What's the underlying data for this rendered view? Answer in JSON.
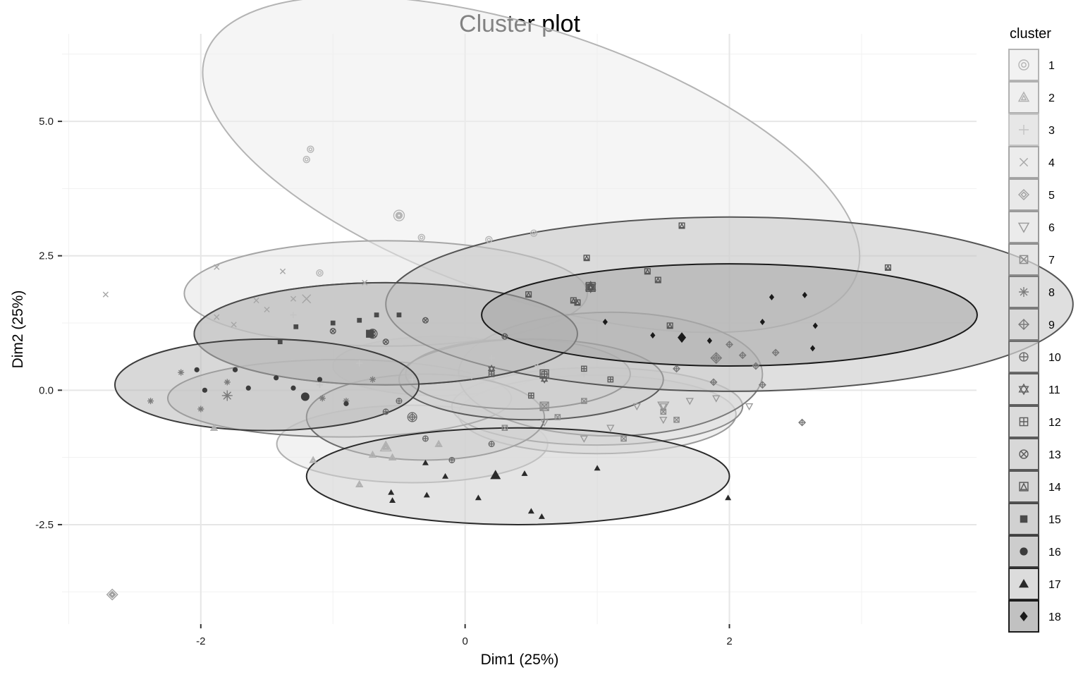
{
  "chart_data": {
    "type": "scatter",
    "title": "Cluster plot",
    "xlabel": "Dim1 (25%)",
    "ylabel": "Dim2 (25%)",
    "xlim": [
      -3.05,
      3.87
    ],
    "ylim": [
      -4.35,
      6.47
    ],
    "x_ticks": [
      -2,
      0,
      2
    ],
    "x_tick_labels": [
      "-2",
      "0",
      "2"
    ],
    "y_ticks": [
      -2.5,
      0,
      2.5,
      5
    ],
    "y_tick_labels": [
      "-2.5",
      "0.0",
      "2.5",
      "5.0"
    ],
    "grid": true,
    "legend": {
      "title": "cluster",
      "placement": "right",
      "entries": [
        {
          "label": "1",
          "shape": "circle-open-dot"
        },
        {
          "label": "2",
          "shape": "triangle-open-inner"
        },
        {
          "label": "3",
          "shape": "plus"
        },
        {
          "label": "4",
          "shape": "cross"
        },
        {
          "label": "5",
          "shape": "diamond-open-inner"
        },
        {
          "label": "6",
          "shape": "triangle-down-open"
        },
        {
          "label": "7",
          "shape": "square-crossed"
        },
        {
          "label": "8",
          "shape": "asterisk"
        },
        {
          "label": "9",
          "shape": "diamond-plus"
        },
        {
          "label": "10",
          "shape": "circle-plus"
        },
        {
          "label": "11",
          "shape": "star-of-david"
        },
        {
          "label": "12",
          "shape": "square-plus"
        },
        {
          "label": "13",
          "shape": "circle-crossed"
        },
        {
          "label": "14",
          "shape": "square-triangle"
        },
        {
          "label": "15",
          "shape": "square-filled"
        },
        {
          "label": "16",
          "shape": "circle-filled"
        },
        {
          "label": "17",
          "shape": "triangle-filled"
        },
        {
          "label": "18",
          "shape": "diamond-filled"
        }
      ]
    },
    "series": [
      {
        "cluster": "1",
        "color": "#b4b4b4",
        "fill": "#ededed",
        "ellipse": {
          "cx": 0.5,
          "cy": 4.2,
          "rx": 5.2,
          "ry": 2.5,
          "angle": -18.6
        },
        "center": [
          -0.5,
          3.25
        ],
        "points": [
          [
            -1.17,
            4.48
          ],
          [
            -1.2,
            4.29
          ],
          [
            -0.33,
            2.84
          ],
          [
            0.18,
            2.8
          ],
          [
            0.52,
            2.92
          ],
          [
            -1.1,
            2.18
          ],
          [
            -0.5,
            3.25
          ]
        ]
      },
      {
        "cluster": "2",
        "color": "#b0b0b0",
        "fill": "#e8e8e8",
        "ellipse": {
          "cx": -0.4,
          "cy": -1.0,
          "rx": 2.05,
          "ry": 0.72,
          "angle": 0
        },
        "center": [
          -0.6,
          -1.05
        ],
        "points": [
          [
            -1.9,
            -0.7
          ],
          [
            -1.15,
            -1.3
          ],
          [
            -0.7,
            -1.2
          ],
          [
            -0.55,
            -1.25
          ],
          [
            -0.8,
            -1.75
          ],
          [
            -0.2,
            -1.0
          ],
          [
            -0.6,
            -1.05
          ]
        ]
      },
      {
        "cluster": "3",
        "color": "#c4c4c4",
        "fill": "#dddddd",
        "ellipse": {
          "cx": -0.2,
          "cy": 0.45,
          "rx": 1.6,
          "ry": 0.55,
          "angle": 0
        },
        "center": [
          0.05,
          0.3
        ],
        "points": [
          [
            -1.3,
            1.4
          ],
          [
            -0.8,
            0.5
          ],
          [
            -0.4,
            0.2
          ],
          [
            0.2,
            0.6
          ],
          [
            0.55,
            0.45
          ],
          [
            0.9,
            0.3
          ],
          [
            -1.1,
            0.1
          ],
          [
            0.05,
            0.3
          ]
        ]
      },
      {
        "cluster": "4",
        "color": "#a6a6a6",
        "fill": "#e4e4e4",
        "ellipse": {
          "cx": -0.6,
          "cy": 1.8,
          "rx": 3.05,
          "ry": 0.98,
          "angle": 0
        },
        "center": [
          -1.2,
          1.7
        ],
        "points": [
          [
            -2.72,
            1.78
          ],
          [
            -1.88,
            2.29
          ],
          [
            -1.38,
            2.21
          ],
          [
            -0.76,
            2.0
          ],
          [
            -1.3,
            1.7
          ],
          [
            -1.58,
            1.67
          ],
          [
            -1.88,
            1.36
          ],
          [
            -1.75,
            1.22
          ],
          [
            -1.5,
            1.5
          ],
          [
            -1.2,
            1.7
          ]
        ]
      },
      {
        "cluster": "5",
        "color": "#a0a0a0",
        "fill": "#e0e0e0",
        "ellipse": {
          "cx": -2.67,
          "cy": -3.8,
          "rx": 0.0,
          "ry": 0.0,
          "angle": 0
        },
        "center": [
          -2.67,
          -3.8
        ],
        "points": [
          [
            -2.67,
            -3.8
          ]
        ]
      },
      {
        "cluster": "6",
        "color": "#9a9a9a",
        "fill": "#e2e2e2",
        "ellipse": {
          "cx": 1.0,
          "cy": -0.45,
          "rx": 2.1,
          "ry": 0.73,
          "angle": 0
        },
        "center": [
          1.5,
          -0.3
        ],
        "points": [
          [
            1.1,
            -0.7
          ],
          [
            1.3,
            -0.3
          ],
          [
            1.5,
            -0.55
          ],
          [
            1.7,
            -0.2
          ],
          [
            1.9,
            -0.15
          ],
          [
            2.15,
            -0.3
          ],
          [
            0.9,
            -0.9
          ],
          [
            0.6,
            -0.6
          ],
          [
            1.5,
            -0.3
          ]
        ]
      },
      {
        "cluster": "7",
        "color": "#8c8c8c",
        "fill": "#dcdcdc",
        "ellipse": {
          "cx": 1.0,
          "cy": -0.3,
          "rx": 2.2,
          "ry": 0.72,
          "angle": 0
        },
        "center": [
          0.6,
          -0.3
        ],
        "points": [
          [
            0.7,
            -0.5
          ],
          [
            1.2,
            -0.9
          ],
          [
            1.5,
            -0.4
          ],
          [
            1.6,
            -0.55
          ],
          [
            0.3,
            -0.7
          ],
          [
            0.9,
            -0.2
          ],
          [
            0.6,
            -0.3
          ]
        ]
      },
      {
        "cluster": "8",
        "color": "#7c7c7c",
        "fill": "#dadada",
        "ellipse": {
          "cx": -0.95,
          "cy": -0.15,
          "rx": 2.6,
          "ry": 0.72,
          "angle": 0
        },
        "center": [
          -1.8,
          -0.1
        ],
        "points": [
          [
            -2.38,
            -0.2
          ],
          [
            -2.0,
            -0.35
          ],
          [
            -2.15,
            0.33
          ],
          [
            -1.8,
            0.15
          ],
          [
            -1.08,
            -0.15
          ],
          [
            -0.7,
            0.2
          ],
          [
            -0.9,
            -0.2
          ],
          [
            -1.8,
            -0.1
          ]
        ]
      },
      {
        "cluster": "9",
        "color": "#7a7a7a",
        "fill": "#d6d6d6",
        "ellipse": {
          "cx": 1.1,
          "cy": 0.3,
          "rx": 2.3,
          "ry": 1.15,
          "angle": 0
        },
        "center": [
          1.9,
          0.6
        ],
        "points": [
          [
            1.88,
            0.15
          ],
          [
            2.1,
            0.65
          ],
          [
            2.2,
            0.45
          ],
          [
            2.35,
            0.7
          ],
          [
            2.25,
            0.1
          ],
          [
            2.55,
            -0.6
          ],
          [
            1.6,
            0.4
          ],
          [
            2.0,
            0.85
          ],
          [
            1.9,
            0.6
          ]
        ]
      },
      {
        "cluster": "10",
        "color": "#6c6c6c",
        "fill": "#d2d2d2",
        "ellipse": {
          "cx": -0.3,
          "cy": -0.5,
          "rx": 1.8,
          "ry": 0.8,
          "angle": 0
        },
        "center": [
          -0.4,
          -0.5
        ],
        "points": [
          [
            -0.3,
            -0.9
          ],
          [
            -0.1,
            -1.3
          ],
          [
            0.2,
            -1.0
          ],
          [
            -0.6,
            -0.4
          ],
          [
            -0.5,
            -0.2
          ],
          [
            -0.4,
            -0.5
          ]
        ]
      },
      {
        "cluster": "11",
        "color": "#606060",
        "fill": "#d0d0d0",
        "ellipse": {
          "cx": 0.4,
          "cy": 0.3,
          "rx": 1.7,
          "ry": 0.65,
          "angle": 0
        },
        "center": [
          0.95,
          1.92
        ],
        "points": [
          [
            0.95,
            1.92
          ],
          [
            0.2,
            0.4
          ],
          [
            0.6,
            0.2
          ]
        ]
      },
      {
        "cluster": "12",
        "color": "#5c5c5c",
        "fill": "#cccccc",
        "ellipse": {
          "cx": 0.5,
          "cy": 0.2,
          "rx": 2.0,
          "ry": 0.75,
          "angle": 0
        },
        "center": [
          0.6,
          0.3
        ],
        "points": [
          [
            0.2,
            0.3
          ],
          [
            0.5,
            -0.1
          ],
          [
            0.9,
            0.4
          ],
          [
            1.1,
            0.2
          ],
          [
            0.6,
            0.3
          ]
        ]
      },
      {
        "cluster": "13",
        "color": "#5a5a5a",
        "fill": "#c8c8c8",
        "ellipse": {
          "cx": -0.6,
          "cy": 1.05,
          "rx": 2.9,
          "ry": 0.95,
          "angle": 0
        },
        "center": [
          -0.7,
          1.05
        ],
        "points": [
          [
            -1.0,
            1.1
          ],
          [
            -0.6,
            0.9
          ],
          [
            -0.3,
            1.3
          ],
          [
            0.3,
            1.0
          ],
          [
            -0.7,
            1.05
          ]
        ]
      },
      {
        "cluster": "14",
        "color": "#555555",
        "fill": "#c4c4c4",
        "ellipse": {
          "cx": 2.0,
          "cy": 1.6,
          "rx": 5.2,
          "ry": 1.62,
          "angle": 0
        },
        "center": [
          0.95,
          1.92
        ],
        "points": [
          [
            1.64,
            3.06
          ],
          [
            0.92,
            2.46
          ],
          [
            1.38,
            2.21
          ],
          [
            1.46,
            2.05
          ],
          [
            3.2,
            2.28
          ],
          [
            0.48,
            1.78
          ],
          [
            0.82,
            1.67
          ],
          [
            0.85,
            1.63
          ],
          [
            1.55,
            1.2
          ],
          [
            0.95,
            1.92
          ]
        ]
      },
      {
        "cluster": "15",
        "color": "#4a4a4a",
        "fill": "#bebebe",
        "ellipse": {
          "cx": -0.6,
          "cy": 1.05,
          "rx": 2.9,
          "ry": 0.95,
          "angle": 0
        },
        "center": [
          -0.72,
          1.05
        ],
        "points": [
          [
            -1.28,
            1.18
          ],
          [
            -1.0,
            1.25
          ],
          [
            -0.8,
            1.3
          ],
          [
            -0.67,
            1.4
          ],
          [
            -0.5,
            1.4
          ],
          [
            -1.4,
            0.9
          ],
          [
            -0.72,
            1.05
          ]
        ]
      },
      {
        "cluster": "16",
        "color": "#3c3c3c",
        "fill": "#b8b8b8",
        "ellipse": {
          "cx": -1.5,
          "cy": 0.1,
          "rx": 2.3,
          "ry": 0.85,
          "angle": 0
        },
        "center": [
          -1.21,
          -0.12
        ],
        "points": [
          [
            -2.03,
            0.38
          ],
          [
            -1.97,
            0.0
          ],
          [
            -1.74,
            0.38
          ],
          [
            -1.64,
            0.04
          ],
          [
            -1.43,
            0.23
          ],
          [
            -1.3,
            0.04
          ],
          [
            -1.1,
            0.2
          ],
          [
            -0.9,
            -0.25
          ],
          [
            -1.21,
            -0.12
          ]
        ]
      },
      {
        "cluster": "17",
        "color": "#2a2a2a",
        "fill": "#cdcdcd",
        "ellipse": {
          "cx": 0.4,
          "cy": -1.6,
          "rx": 3.2,
          "ry": 0.9,
          "angle": 0
        },
        "center": [
          0.23,
          -1.58
        ],
        "points": [
          [
            -0.3,
            -1.35
          ],
          [
            -0.15,
            -1.6
          ],
          [
            0.1,
            -2.0
          ],
          [
            -0.29,
            -1.95
          ],
          [
            0.45,
            -1.55
          ],
          [
            0.5,
            -2.25
          ],
          [
            0.58,
            -2.35
          ],
          [
            1.0,
            -1.45
          ],
          [
            1.99,
            -2.0
          ],
          [
            -0.55,
            -2.05
          ],
          [
            -0.56,
            -1.9
          ],
          [
            0.23,
            -1.58
          ]
        ]
      },
      {
        "cluster": "18",
        "color": "#1a1a1a",
        "fill": "#a6a6a6",
        "ellipse": {
          "cx": 2.0,
          "cy": 1.4,
          "rx": 3.75,
          "ry": 0.95,
          "angle": 0
        },
        "center": [
          1.64,
          0.98
        ],
        "points": [
          [
            2.32,
            1.73
          ],
          [
            2.57,
            1.77
          ],
          [
            1.06,
            1.27
          ],
          [
            1.42,
            1.02
          ],
          [
            1.85,
            0.92
          ],
          [
            2.25,
            1.27
          ],
          [
            2.63,
            0.78
          ],
          [
            2.65,
            1.2
          ],
          [
            1.64,
            0.98
          ]
        ]
      }
    ]
  }
}
